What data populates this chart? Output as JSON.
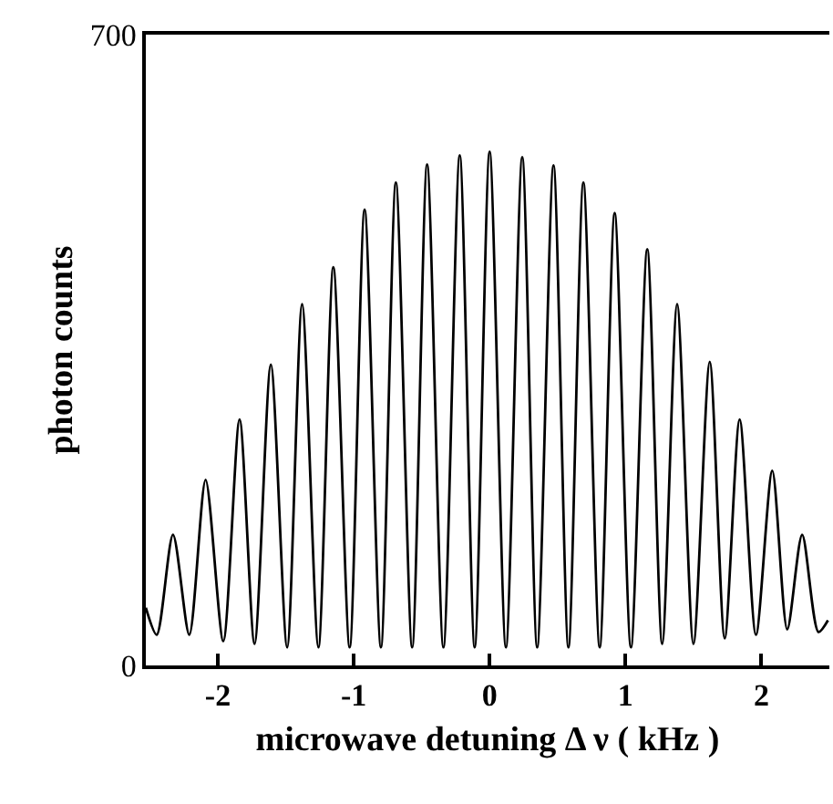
{
  "chart_data": {
    "type": "line",
    "xlabel": "microwave detuning Δ ν ( kHz )",
    "ylabel": "photon counts",
    "x": [
      -2.53,
      -2.45,
      -2.33,
      -2.21,
      -2.09,
      -1.96,
      -1.84,
      -1.73,
      -1.61,
      -1.49,
      -1.38,
      -1.26,
      -1.15,
      -1.03,
      -0.92,
      -0.8,
      -0.69,
      -0.57,
      -0.46,
      -0.34,
      -0.22,
      -0.11,
      0.0,
      0.12,
      0.24,
      0.35,
      0.47,
      0.58,
      0.69,
      0.81,
      0.92,
      1.04,
      1.16,
      1.27,
      1.38,
      1.5,
      1.62,
      1.73,
      1.84,
      1.96,
      2.08,
      2.19,
      2.3,
      2.42,
      2.49
    ],
    "series": [
      {
        "color": "#000000",
        "values": [
          64,
          34,
          145,
          34,
          206,
          27,
          273,
          24,
          334,
          20,
          401,
          20,
          442,
          20,
          506,
          20,
          536,
          20,
          556,
          20,
          566,
          20,
          570,
          20,
          564,
          20,
          555,
          20,
          536,
          20,
          502,
          20,
          462,
          24,
          401,
          24,
          337,
          30,
          273,
          34,
          216,
          40,
          145,
          37,
          50
        ]
      }
    ],
    "xlim": [
      -2.53,
      2.5
    ],
    "ylim": [
      0,
      700
    ],
    "xticks": [
      -2,
      -1,
      0,
      1,
      2
    ],
    "yticks": [
      0,
      700
    ],
    "marker": "none",
    "line_style": "solid"
  }
}
